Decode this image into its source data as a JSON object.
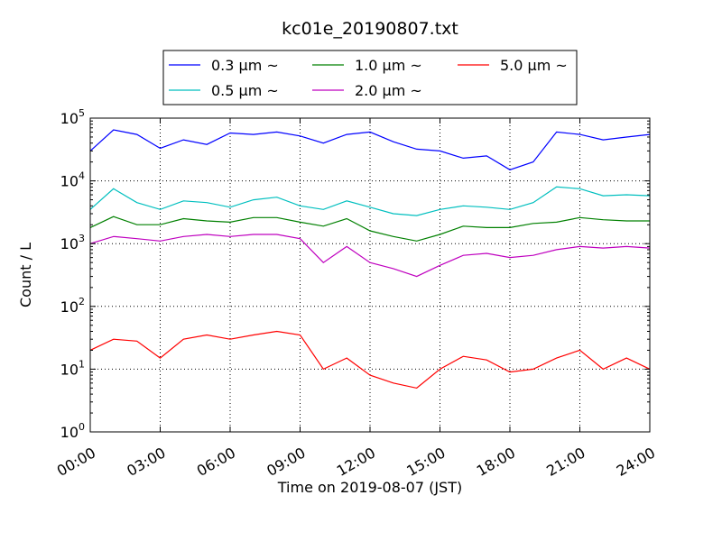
{
  "chart_data": {
    "type": "line",
    "title": "kc01e_20190807.txt",
    "xlabel": "Time on 2019-08-07 (JST)",
    "ylabel": "Count / L",
    "yscale": "log",
    "ylim": [
      1,
      100000
    ],
    "xlim": [
      "2019-08-07 00:00",
      "2019-08-08 00:00"
    ],
    "grid": true,
    "legend_position": "top-center",
    "xticks": [
      "00:00",
      "03:00",
      "06:00",
      "09:00",
      "12:00",
      "15:00",
      "18:00",
      "21:00",
      "24:00"
    ],
    "yticks": [
      {
        "base": "10",
        "exp": "0"
      },
      {
        "base": "10",
        "exp": "1"
      },
      {
        "base": "10",
        "exp": "2"
      },
      {
        "base": "10",
        "exp": "3"
      },
      {
        "base": "10",
        "exp": "4"
      },
      {
        "base": "10",
        "exp": "5"
      }
    ],
    "series": [
      {
        "name": "0.3 μm ~",
        "color": "#0000ff",
        "x": [
          "00:00",
          "01:00",
          "02:00",
          "03:00",
          "04:00",
          "05:00",
          "06:00",
          "07:00",
          "08:00",
          "09:00",
          "10:00",
          "11:00",
          "12:00",
          "13:00",
          "14:00",
          "15:00",
          "16:00",
          "17:00",
          "18:00",
          "19:00",
          "20:00",
          "21:00",
          "22:00",
          "23:00",
          "24:00"
        ],
        "y": [
          30000,
          65000,
          55000,
          33000,
          45000,
          38000,
          58000,
          55000,
          60000,
          52000,
          40000,
          55000,
          60000,
          42000,
          32000,
          30000,
          23000,
          25000,
          15000,
          20000,
          60000,
          55000,
          45000,
          50000,
          55000
        ]
      },
      {
        "name": "0.5 μm ~",
        "color": "#00bfbf",
        "x": [
          "00:00",
          "01:00",
          "02:00",
          "03:00",
          "04:00",
          "05:00",
          "06:00",
          "07:00",
          "08:00",
          "09:00",
          "10:00",
          "11:00",
          "12:00",
          "13:00",
          "14:00",
          "15:00",
          "16:00",
          "17:00",
          "18:00",
          "19:00",
          "20:00",
          "21:00",
          "22:00",
          "23:00",
          "24:00"
        ],
        "y": [
          3500,
          7500,
          4500,
          3500,
          4800,
          4500,
          3800,
          5000,
          5500,
          4000,
          3500,
          4800,
          3800,
          3000,
          2800,
          3500,
          4000,
          3800,
          3500,
          4500,
          8000,
          7500,
          5800,
          6000,
          5800
        ]
      },
      {
        "name": "1.0 μm ~",
        "color": "#008000",
        "x": [
          "00:00",
          "01:00",
          "02:00",
          "03:00",
          "04:00",
          "05:00",
          "06:00",
          "07:00",
          "08:00",
          "09:00",
          "10:00",
          "11:00",
          "12:00",
          "13:00",
          "14:00",
          "15:00",
          "16:00",
          "17:00",
          "18:00",
          "19:00",
          "20:00",
          "21:00",
          "22:00",
          "23:00",
          "24:00"
        ],
        "y": [
          1800,
          2700,
          2000,
          2000,
          2500,
          2300,
          2200,
          2600,
          2600,
          2200,
          1900,
          2500,
          1600,
          1300,
          1100,
          1400,
          1900,
          1800,
          1800,
          2100,
          2200,
          2600,
          2400,
          2300,
          2300
        ]
      },
      {
        "name": "2.0 μm ~",
        "color": "#bf00bf",
        "x": [
          "00:00",
          "01:00",
          "02:00",
          "03:00",
          "04:00",
          "05:00",
          "06:00",
          "07:00",
          "08:00",
          "09:00",
          "10:00",
          "11:00",
          "12:00",
          "13:00",
          "14:00",
          "15:00",
          "16:00",
          "17:00",
          "18:00",
          "19:00",
          "20:00",
          "21:00",
          "22:00",
          "23:00",
          "24:00"
        ],
        "y": [
          1000,
          1300,
          1200,
          1100,
          1300,
          1400,
          1300,
          1400,
          1400,
          1200,
          500,
          900,
          500,
          400,
          300,
          450,
          650,
          700,
          600,
          650,
          800,
          900,
          850,
          900,
          850
        ]
      },
      {
        "name": "5.0 μm ~",
        "color": "#ff0000",
        "x": [
          "00:00",
          "01:00",
          "02:00",
          "03:00",
          "04:00",
          "05:00",
          "06:00",
          "07:00",
          "08:00",
          "09:00",
          "10:00",
          "11:00",
          "12:00",
          "13:00",
          "14:00",
          "15:00",
          "16:00",
          "17:00",
          "18:00",
          "19:00",
          "20:00",
          "21:00",
          "22:00",
          "23:00",
          "24:00"
        ],
        "y": [
          20,
          30,
          28,
          15,
          30,
          35,
          30,
          35,
          40,
          35,
          10,
          15,
          8,
          6,
          5,
          10,
          16,
          14,
          9,
          10,
          15,
          20,
          10,
          15,
          10
        ]
      }
    ]
  }
}
